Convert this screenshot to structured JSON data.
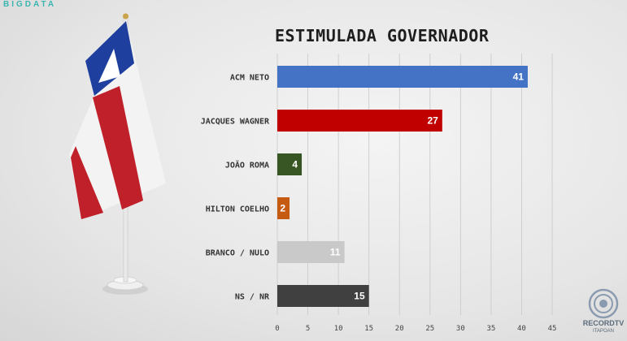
{
  "brand": {
    "name": "BIGDATA"
  },
  "network_logo": {
    "name": "RECORDTV",
    "sub": "ITAPOAN"
  },
  "colors": {
    "title": "#1e1e1e",
    "gridline": "#c8c8c8"
  },
  "chart_data": {
    "type": "bar",
    "orientation": "horizontal",
    "title": "ESTIMULADA GOVERNADOR",
    "categories": [
      "ACM NETO",
      "JACQUES WAGNER",
      "JOÃO ROMA",
      "HILTON COELHO",
      "BRANCO / NULO",
      "NS / NR"
    ],
    "values": [
      41,
      27,
      4,
      2,
      11,
      15
    ],
    "value_labels": [
      "41",
      "27",
      "4",
      "2",
      "11",
      "15"
    ],
    "bar_colors": [
      "#4472c4",
      "#c00000",
      "#375623",
      "#c55a11",
      "#c9c9c9",
      "#404040"
    ],
    "xlim": [
      0,
      45
    ],
    "xticks": [
      "0",
      "5",
      "10",
      "15",
      "20",
      "25",
      "30",
      "35",
      "40",
      "45"
    ],
    "grid": true,
    "legend": "none"
  }
}
